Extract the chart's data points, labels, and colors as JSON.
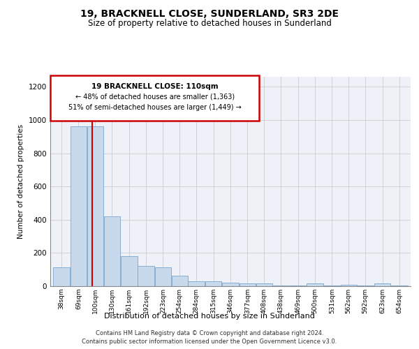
{
  "title": "19, BRACKNELL CLOSE, SUNDERLAND, SR3 2DE",
  "subtitle": "Size of property relative to detached houses in Sunderland",
  "xlabel": "Distribution of detached houses by size in Sunderland",
  "ylabel": "Number of detached properties",
  "footer1": "Contains HM Land Registry data © Crown copyright and database right 2024.",
  "footer2": "Contains public sector information licensed under the Open Government Licence v3.0.",
  "annotation_title": "19 BRACKNELL CLOSE: 110sqm",
  "annotation_line1": "← 48% of detached houses are smaller (1,363)",
  "annotation_line2": "51% of semi-detached houses are larger (1,449) →",
  "property_size": 110,
  "bin_labels": [
    "38sqm",
    "69sqm",
    "100sqm",
    "130sqm",
    "161sqm",
    "192sqm",
    "223sqm",
    "254sqm",
    "284sqm",
    "315sqm",
    "346sqm",
    "377sqm",
    "408sqm",
    "438sqm",
    "469sqm",
    "500sqm",
    "531sqm",
    "562sqm",
    "592sqm",
    "623sqm",
    "654sqm"
  ],
  "bin_edges": [
    38,
    69,
    100,
    130,
    161,
    192,
    223,
    254,
    284,
    315,
    346,
    377,
    408,
    438,
    469,
    500,
    531,
    562,
    592,
    623,
    654,
    685
  ],
  "values": [
    113,
    960,
    960,
    420,
    180,
    120,
    115,
    65,
    28,
    28,
    22,
    18,
    15,
    4,
    4,
    15,
    4,
    8,
    4,
    15,
    4
  ],
  "bar_color": "#c9d9ec",
  "bar_edge_color": "#7aa5cc",
  "grid_color": "#cccccc",
  "vline_color": "#cc0000",
  "annotation_box_color": "#cc0000",
  "ylim": [
    0,
    1260
  ],
  "yticks": [
    0,
    200,
    400,
    600,
    800,
    1000,
    1200
  ],
  "background_color": "#eef2f8"
}
